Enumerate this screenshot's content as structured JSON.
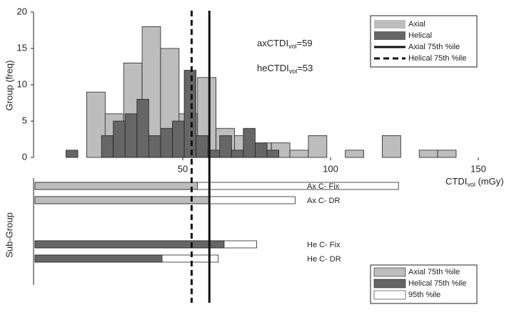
{
  "chart_data": [
    {
      "type": "histogram",
      "y_label": "Group (freq)",
      "x_label": {
        "main": "CTDI",
        "sub": "vol",
        "rest": " (mGy)"
      },
      "xlim": [
        0,
        150
      ],
      "xticks": [
        50,
        100,
        150
      ],
      "ylim": [
        0,
        20
      ],
      "yticks": [
        0,
        5,
        10,
        15,
        20
      ],
      "legend": "top-right",
      "series": [
        {
          "name": "Axial",
          "color": "#bdbdbd",
          "bins": [
            17.5,
            23.75,
            30,
            36.25,
            42.5,
            48.75,
            55,
            61.25,
            67.5,
            73.75,
            80,
            86.25,
            92.5,
            98.75,
            105,
            111.25,
            117.5,
            123.75,
            130,
            136.25,
            142.5
          ],
          "values": [
            9,
            6,
            13,
            18,
            15,
            6,
            11,
            4,
            3,
            2,
            2,
            1,
            3,
            0,
            1,
            0,
            3,
            0,
            1,
            1
          ]
        },
        {
          "name": "Helical",
          "color": "#666666",
          "bins": [
            10.5,
            14.5,
            18.5,
            22.5,
            26.5,
            30.5,
            34.5,
            38.5,
            42.5,
            46.5,
            50.5,
            54.5,
            58.5,
            62.5,
            66.5,
            70.5,
            74.5,
            78.5,
            82.5
          ],
          "values": [
            1,
            0,
            0,
            3,
            5,
            6,
            8,
            3,
            4,
            5,
            12,
            3,
            1,
            3,
            1,
            4,
            2,
            1
          ]
        }
      ],
      "reference_lines": [
        {
          "name": "Axial 75th %ile",
          "value": 59,
          "style": "solid"
        },
        {
          "name": "Helical 75th %ile",
          "value": 53,
          "style": "dashed"
        }
      ],
      "annotations": [
        {
          "main": "axCTDI",
          "sub": "vol",
          "rest": "=59"
        },
        {
          "main": "heCTDI",
          "sub": "vol",
          "rest": "=53"
        }
      ]
    },
    {
      "type": "bar",
      "orientation": "horizontal",
      "y_label": "Sub-Group",
      "legend": "bottom-right",
      "xlim": [
        0,
        150
      ],
      "categories": [
        "Ax C- Fix",
        "Ax C- DR",
        "He C- Fix",
        "He C- DR"
      ],
      "series": [
        {
          "name": "95th %ile",
          "color": "#ffffff",
          "values": [
            123,
            88,
            75,
            62
          ]
        },
        {
          "name": "Axial 75th %ile",
          "color": "#bdbdbd",
          "values": [
            55,
            59,
            null,
            null
          ]
        },
        {
          "name": "Helical 75th %ile",
          "color": "#666666",
          "values": [
            null,
            null,
            64,
            43
          ]
        }
      ]
    }
  ]
}
